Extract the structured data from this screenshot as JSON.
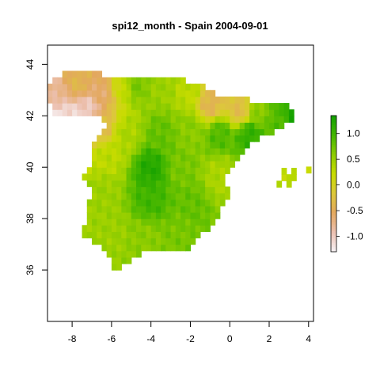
{
  "chart_data": {
    "type": "heatmap",
    "title": "spi12_month - Spain 2004-09-01",
    "xlabel": "",
    "ylabel": "",
    "xlim": [
      -9.25,
      4.25
    ],
    "ylim": [
      34.0,
      44.75
    ],
    "xticks": [
      "-8",
      "-6",
      "-4",
      "-2",
      "0",
      "2",
      "4"
    ],
    "yticks": [
      "36",
      "38",
      "40",
      "42",
      "44"
    ],
    "resolution_deg": 0.25,
    "colorbar": {
      "range": [
        -1.3,
        1.35
      ],
      "ticks": [
        "-1.0",
        "-0.5",
        "0.0",
        "0.5",
        "1.0"
      ],
      "colors": [
        "#f7f2f5",
        "#ecc0b0",
        "#e3a85e",
        "#dcc83a",
        "#c8dc00",
        "#8ccc00",
        "#43b600",
        "#12a000"
      ]
    },
    "description_note": "",
    "cell_values": [
      {
        "lon": -8.75,
        "lat": 42.0,
        "value": -1.2
      },
      {
        "lon": -8.0,
        "lat": 42.0,
        "value": -1.1
      },
      {
        "lon": -7.25,
        "lat": 42.25,
        "value": -1.0
      },
      {
        "lon": -8.75,
        "lat": 42.75,
        "value": -0.8
      },
      {
        "lon": -7.75,
        "lat": 43.25,
        "value": -0.4
      },
      {
        "lon": -6.5,
        "lat": 43.0,
        "value": -0.6
      },
      {
        "lon": -5.5,
        "lat": 43.25,
        "value": 0.2
      },
      {
        "lon": -4.75,
        "lat": 43.25,
        "value": 0.7
      },
      {
        "lon": -3.5,
        "lat": 43.25,
        "value": 0.5
      },
      {
        "lon": -2.0,
        "lat": 43.0,
        "value": 0.3
      },
      {
        "lon": -1.0,
        "lat": 42.5,
        "value": -0.4
      },
      {
        "lon": 0.5,
        "lat": 42.25,
        "value": -0.3
      },
      {
        "lon": 1.5,
        "lat": 42.25,
        "value": 0.6
      },
      {
        "lon": 2.5,
        "lat": 42.0,
        "value": 0.9
      },
      {
        "lon": 3.25,
        "lat": 42.25,
        "value": 1.3
      },
      {
        "lon": -6.5,
        "lat": 41.5,
        "value": -0.3
      },
      {
        "lon": -5.25,
        "lat": 41.25,
        "value": 0.4
      },
      {
        "lon": -3.5,
        "lat": 41.25,
        "value": 0.8
      },
      {
        "lon": -2.0,
        "lat": 41.5,
        "value": 0.6
      },
      {
        "lon": -0.5,
        "lat": 41.25,
        "value": 0.9
      },
      {
        "lon": 1.0,
        "lat": 41.25,
        "value": 1.1
      },
      {
        "lon": -6.25,
        "lat": 40.5,
        "value": 0.3
      },
      {
        "lon": -4.0,
        "lat": 40.0,
        "value": 1.2
      },
      {
        "lon": -2.5,
        "lat": 40.0,
        "value": 0.7
      },
      {
        "lon": -0.5,
        "lat": 39.75,
        "value": 0.4
      },
      {
        "lon": -6.5,
        "lat": 39.0,
        "value": 0.5
      },
      {
        "lon": -4.0,
        "lat": 38.75,
        "value": 1.0
      },
      {
        "lon": -2.0,
        "lat": 38.5,
        "value": 0.8
      },
      {
        "lon": -6.0,
        "lat": 37.5,
        "value": 0.5
      },
      {
        "lon": -4.25,
        "lat": 37.25,
        "value": 0.6
      },
      {
        "lon": -2.5,
        "lat": 37.5,
        "value": 0.7
      },
      {
        "lon": 3.0,
        "lat": 39.5,
        "value": 0.3
      },
      {
        "lon": 4.0,
        "lat": 39.9,
        "value": 0.2
      }
    ]
  }
}
